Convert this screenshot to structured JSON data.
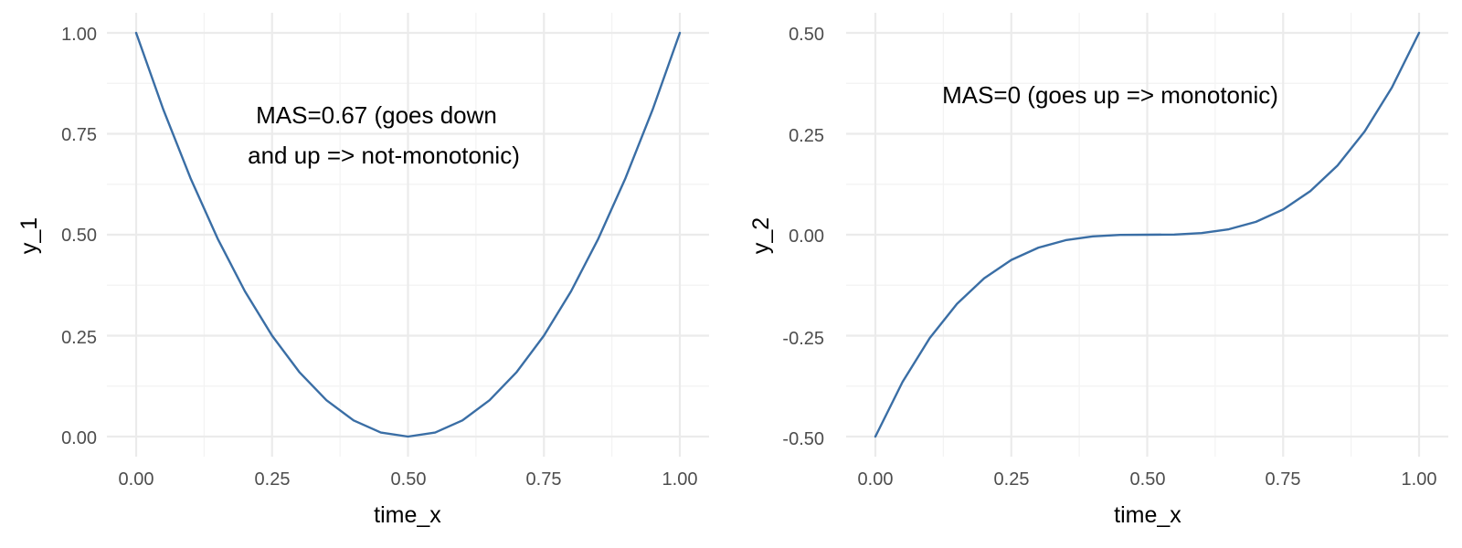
{
  "chart_data": [
    {
      "type": "line",
      "xlabel": "time_x",
      "ylabel": "y_1",
      "xlim": [
        0,
        1
      ],
      "ylim": [
        0,
        1
      ],
      "x_ticks": [
        "0.00",
        "0.25",
        "0.50",
        "0.75",
        "1.00"
      ],
      "y_ticks": [
        "0.00",
        "0.25",
        "0.50",
        "0.75",
        "1.00"
      ],
      "grid": true,
      "annotation": [
        "MAS=0.67 (goes down",
        "and up => not-monotonic)"
      ],
      "series": [
        {
          "color": "#3a6ea5",
          "x": [
            0,
            0.05,
            0.1,
            0.15,
            0.2,
            0.25,
            0.3,
            0.35,
            0.4,
            0.45,
            0.5,
            0.55,
            0.6,
            0.65,
            0.7,
            0.75,
            0.8,
            0.85,
            0.9,
            0.95,
            1
          ],
          "y": [
            1,
            0.81,
            0.64,
            0.49,
            0.36,
            0.25,
            0.16,
            0.09,
            0.04,
            0.01,
            0,
            0.01,
            0.04,
            0.09,
            0.16,
            0.25,
            0.36,
            0.49,
            0.64,
            0.81,
            1
          ]
        }
      ]
    },
    {
      "type": "line",
      "xlabel": "time_x",
      "ylabel": "y_2",
      "xlim": [
        0,
        1
      ],
      "ylim": [
        -0.5,
        0.5
      ],
      "x_ticks": [
        "0.00",
        "0.25",
        "0.50",
        "0.75",
        "1.00"
      ],
      "y_ticks": [
        "-0.50",
        "-0.25",
        "0.00",
        "0.25",
        "0.50"
      ],
      "grid": true,
      "annotation": [
        "MAS=0 (goes up => monotonic)"
      ],
      "series": [
        {
          "color": "#3a6ea5",
          "x": [
            0,
            0.05,
            0.1,
            0.15,
            0.2,
            0.25,
            0.3,
            0.35,
            0.4,
            0.45,
            0.5,
            0.55,
            0.6,
            0.65,
            0.7,
            0.75,
            0.8,
            0.85,
            0.9,
            0.95,
            1
          ],
          "y": [
            -0.5,
            -0.3645,
            -0.256,
            -0.1715,
            -0.108,
            -0.0625,
            -0.032,
            -0.0135,
            -0.004,
            -0.0005,
            0,
            0.0005,
            0.004,
            0.0135,
            0.032,
            0.0625,
            0.108,
            0.1715,
            0.256,
            0.3645,
            0.5
          ]
        }
      ]
    }
  ]
}
